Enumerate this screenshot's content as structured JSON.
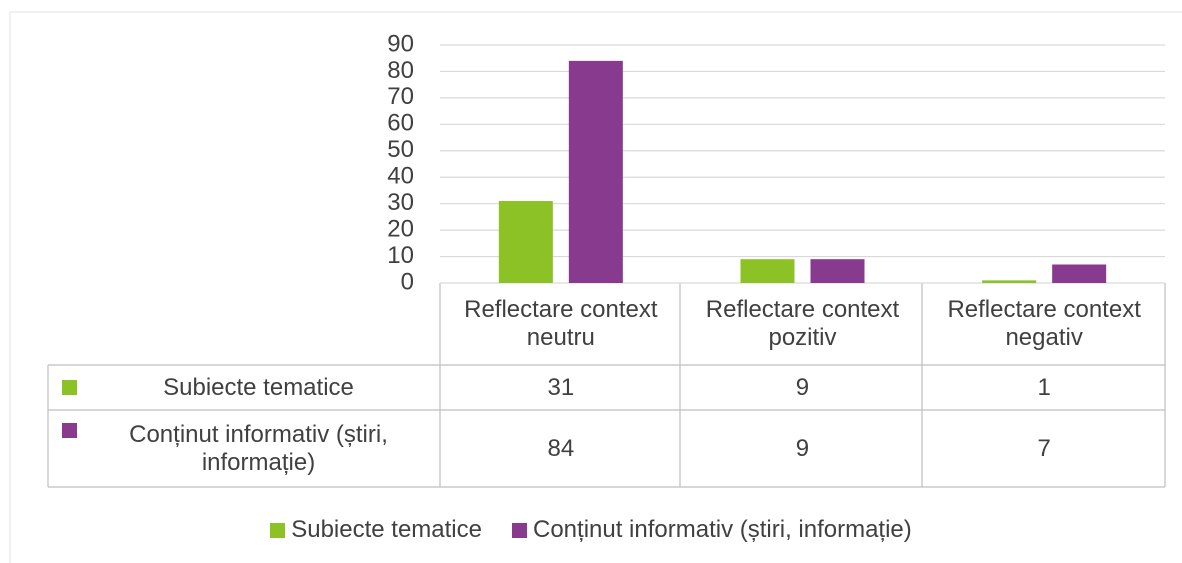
{
  "chart_data": {
    "type": "bar",
    "categories": [
      "Reflectare context neutru",
      "Reflectare context pozitiv",
      "Reflectare context negativ"
    ],
    "series": [
      {
        "name": "Subiecte tematice",
        "color": "#8cc225",
        "values": [
          31,
          9,
          1
        ]
      },
      {
        "name": "Conținut informativ (știri, informație)",
        "color": "#873a8e",
        "values": [
          84,
          9,
          7
        ]
      }
    ],
    "ylim": [
      0,
      90
    ],
    "yticks": [
      0,
      10,
      20,
      30,
      40,
      50,
      60,
      70,
      80,
      90
    ],
    "grid": true,
    "legend": "bottom"
  }
}
